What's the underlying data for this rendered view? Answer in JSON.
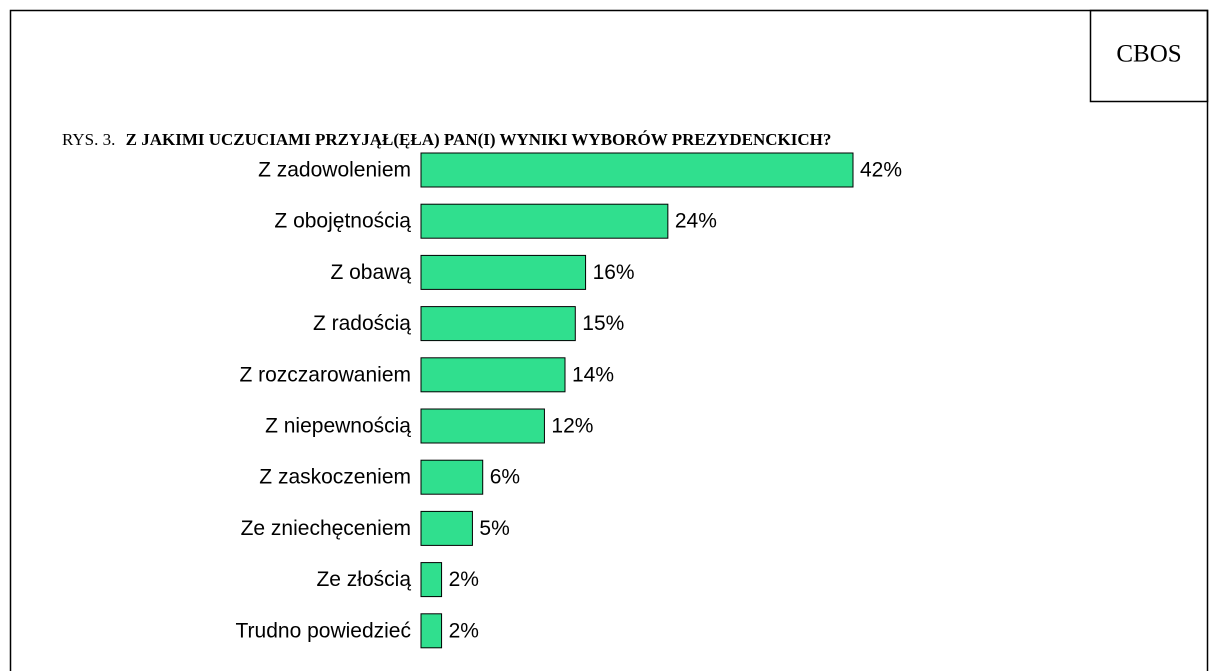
{
  "chart_data": {
    "type": "barh",
    "source": "CBOS",
    "figure_label": "RYS. 3.",
    "title": "Z JAKIMI UCZUCIAMI PRZYJĄŁ(ĘŁA) PAN(I) WYNIKI WYBORÓW PREZYDENCKICH?",
    "categories": [
      "Z zadowoleniem",
      "Z obojętnością",
      "Z obawą",
      "Z radością",
      "Z rozczarowaniem",
      "Z niepewnością",
      "Z zaskoczeniem",
      "Ze zniechęceniem",
      "Ze złością",
      "Trudno powiedzieć"
    ],
    "values": [
      42,
      24,
      16,
      15,
      14,
      12,
      6,
      5,
      2,
      2
    ],
    "value_labels": [
      "42%",
      "24%",
      "16%",
      "15%",
      "14%",
      "12%",
      "6%",
      "5%",
      "2%",
      "2%"
    ],
    "color": "#30df8e"
  }
}
